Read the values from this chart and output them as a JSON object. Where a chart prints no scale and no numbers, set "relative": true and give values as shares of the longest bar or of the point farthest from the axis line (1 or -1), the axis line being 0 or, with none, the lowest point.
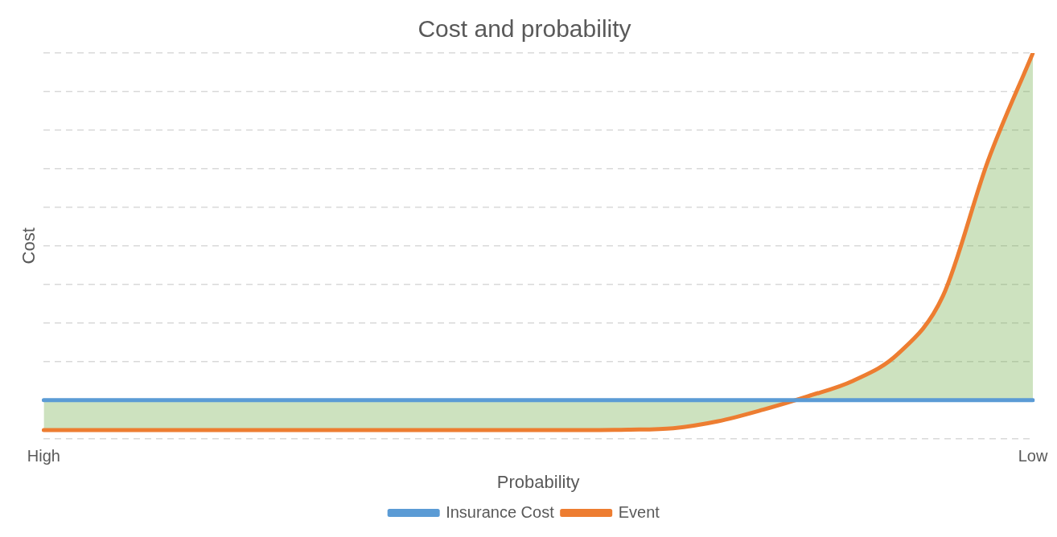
{
  "chart_data": {
    "type": "line",
    "title": "Cost and probability",
    "xlabel": "Probability",
    "ylabel": "Cost",
    "relative": true,
    "grid": "y",
    "legend": "bottom",
    "marker": "none",
    "line_style": "solid",
    "categories": [
      "High",
      null,
      null,
      null,
      null,
      null,
      null,
      null,
      null,
      null,
      null,
      null,
      null,
      null,
      null,
      null,
      null,
      null,
      null,
      null,
      null,
      null,
      "Low"
    ],
    "series": [
      {
        "name": "Insurance Cost",
        "color": "#5b9bd5",
        "values": [
          0.1,
          0.1,
          0.1,
          0.1,
          0.1,
          0.1,
          0.1,
          0.1,
          0.1,
          0.1,
          0.1,
          0.1,
          0.1,
          0.1,
          0.1,
          0.1,
          0.1,
          0.1,
          0.1,
          0.1,
          0.1,
          0.1,
          0.1
        ]
      },
      {
        "name": "Event",
        "color": "#ed7d31",
        "values": [
          0.022,
          0.022,
          0.022,
          0.022,
          0.022,
          0.022,
          0.022,
          0.022,
          0.022,
          0.022,
          0.022,
          0.022,
          0.022,
          0.023,
          0.027,
          0.045,
          0.075,
          0.11,
          0.15,
          0.22,
          0.37,
          0.72,
          1.0
        ],
        "lower": [
          0.1,
          0.1,
          0.1,
          0.1,
          0.1,
          0.1,
          0.1,
          0.1,
          0.1,
          0.1,
          0.1,
          0.1,
          0.1,
          0.1,
          0.1,
          0.1,
          0.1,
          0.1,
          0.1,
          0.1,
          0.1,
          0.1,
          0.1
        ],
        "upper": [
          0.022,
          0.022,
          0.022,
          0.022,
          0.022,
          0.022,
          0.022,
          0.022,
          0.022,
          0.022,
          0.022,
          0.022,
          0.022,
          0.023,
          0.027,
          0.045,
          0.075,
          0.11,
          0.15,
          0.22,
          0.37,
          0.72,
          1.0
        ]
      }
    ]
  }
}
